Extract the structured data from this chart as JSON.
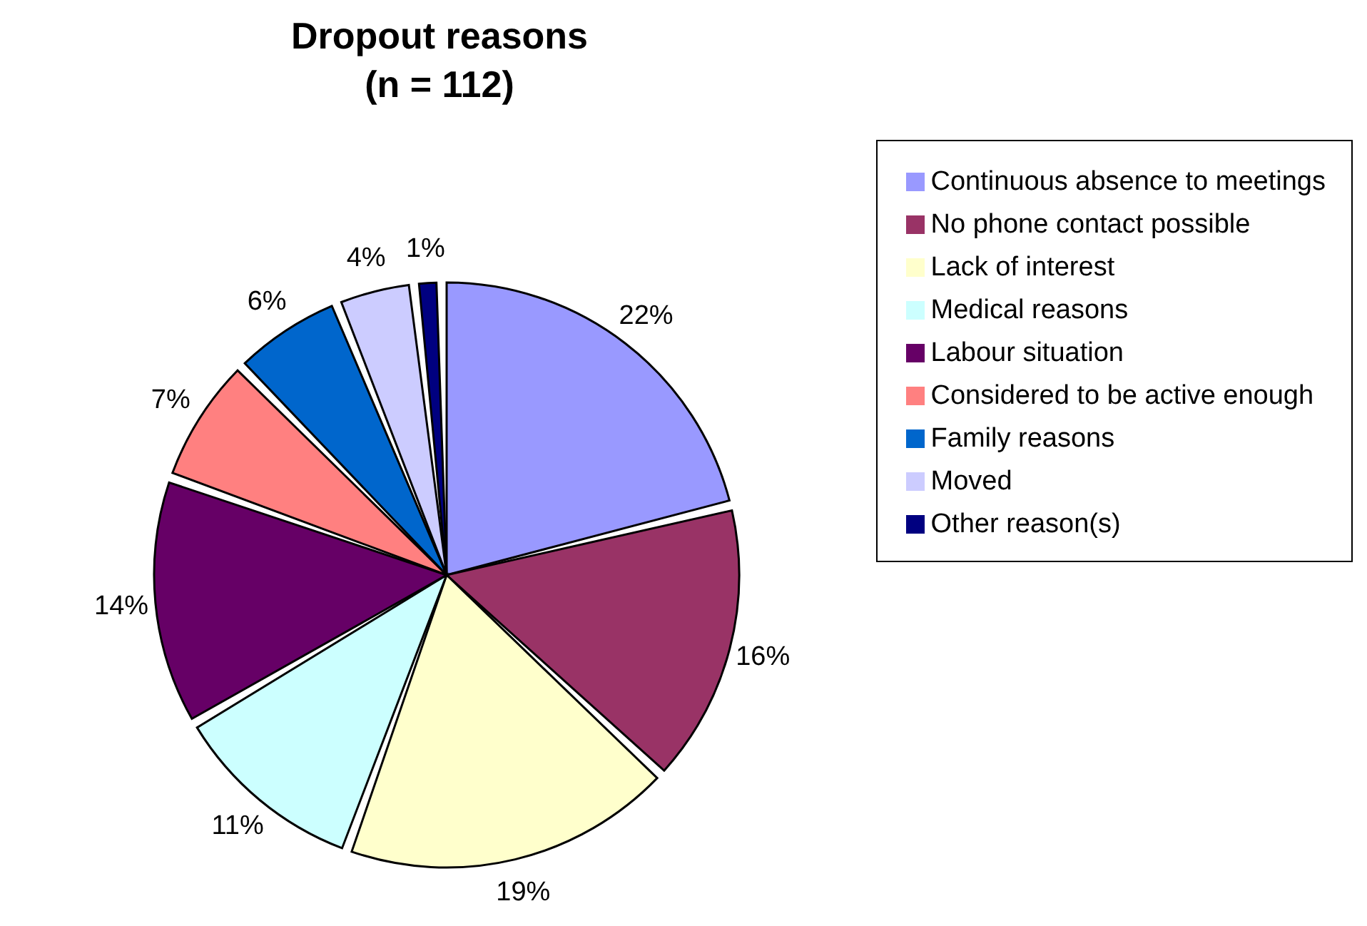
{
  "chart_data": {
    "type": "pie",
    "title": "Dropout reasons",
    "subtitle": "(n = 112)",
    "categories": [
      "Continuous absence to meetings",
      "No phone contact possible",
      "Lack of interest",
      "Medical reasons",
      "Labour situation",
      "Considered to be active enough",
      "Family reasons",
      "Moved",
      "Other reason(s)"
    ],
    "values": [
      22,
      16,
      19,
      11,
      14,
      7,
      6,
      4,
      1
    ],
    "colors": [
      "#9999ff",
      "#993366",
      "#ffffcc",
      "#ccffff",
      "#660066",
      "#ff8080",
      "#0066cc",
      "#ccccff",
      "#000080"
    ],
    "value_labels": [
      "22%",
      "16%",
      "19%",
      "11%",
      "14%",
      "7%",
      "6%",
      "4%",
      "1%"
    ],
    "legend": "right"
  }
}
